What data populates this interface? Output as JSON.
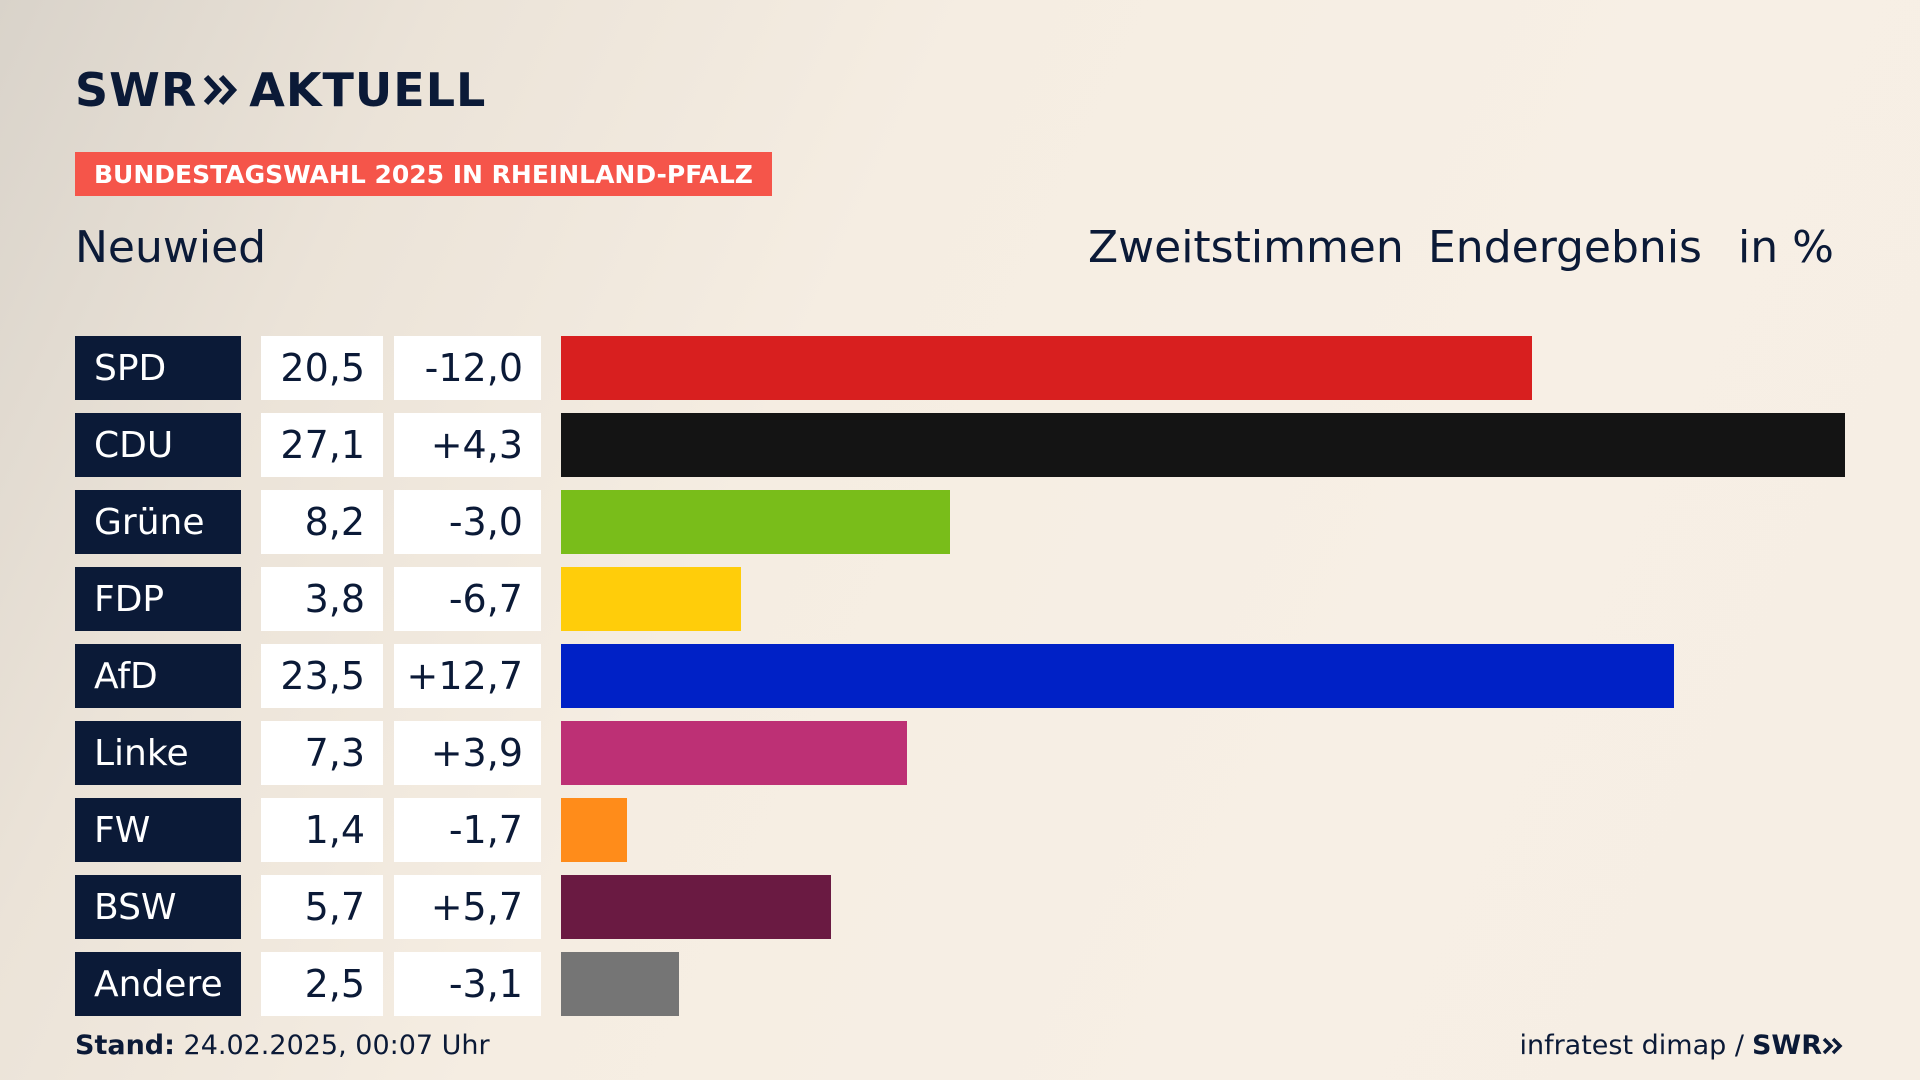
{
  "logo": {
    "swr": "SWR",
    "brand": "AKTUELL",
    "icon": "double-chevron-right-icon"
  },
  "banner": {
    "text": "BUNDESTAGSWAHL 2025 IN RHEINLAND-PFALZ",
    "color": "#f5554a"
  },
  "region": "Neuwied",
  "headers": {
    "vote_type": "Zweitstimmen",
    "result": "Endergebnis",
    "unit": "in %"
  },
  "footer": {
    "stand_label": "Stand:",
    "stand_value": "24.02.2025, 00:07 Uhr",
    "source": "infratest dimap / ",
    "source_brand": "SWR"
  },
  "chart_data": {
    "type": "bar",
    "orientation": "horizontal",
    "unit": "%",
    "xlim": [
      0,
      27.1
    ],
    "categories": [
      "SPD",
      "CDU",
      "Grüne",
      "FDP",
      "AfD",
      "Linke",
      "FW",
      "BSW",
      "Andere"
    ],
    "values": [
      20.5,
      27.1,
      8.2,
      3.8,
      23.5,
      7.3,
      1.4,
      5.7,
      2.5
    ],
    "value_labels": [
      "20,5",
      "27,1",
      "8,2",
      "3,8",
      "23,5",
      "7,3",
      "1,4",
      "5,7",
      "2,5"
    ],
    "changes": [
      -12.0,
      4.3,
      -3.0,
      -6.7,
      12.7,
      3.9,
      -1.7,
      5.7,
      -3.1
    ],
    "change_labels": [
      "-12,0",
      "+4,3",
      "-3,0",
      "-6,7",
      "+12,7",
      "+3,9",
      "-1,7",
      "+5,7",
      "-3,1"
    ],
    "colors": [
      "#d81f1f",
      "#141414",
      "#79bd1a",
      "#ffcd0a",
      "#0021c6",
      "#bd3075",
      "#ff8c1a",
      "#6a1a42",
      "#757575"
    ]
  }
}
